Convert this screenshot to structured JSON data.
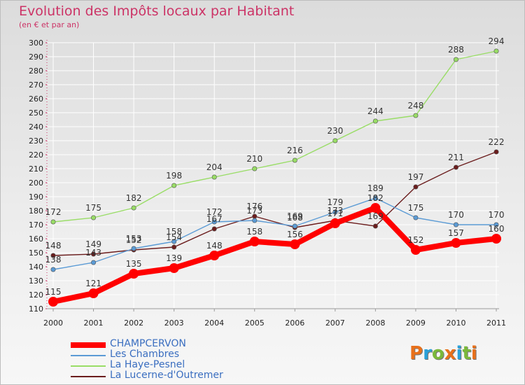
{
  "title": "Evolution des Impôts locaux par Habitant",
  "subtitle": "(en € et par an)",
  "logo": {
    "text": "Proxiti",
    "colors": [
      "#e8701a",
      "#2aa0d8",
      "#7ab83a",
      "#e8701a",
      "#2aa0d8",
      "#7ab83a",
      "#e8701a"
    ]
  },
  "chart_data": {
    "type": "line",
    "title": "Evolution des Impôts locaux par Habitant",
    "subtitle": "(en € et par an)",
    "categories": [
      "2000",
      "2001",
      "2002",
      "2003",
      "2004",
      "2005",
      "2006",
      "2007",
      "2008",
      "2009",
      "2010",
      "2011"
    ],
    "ylim": [
      110,
      300
    ],
    "yticks": [
      110,
      120,
      130,
      140,
      150,
      160,
      170,
      180,
      190,
      200,
      210,
      220,
      230,
      240,
      250,
      260,
      270,
      280,
      290,
      300
    ],
    "grid": true,
    "legend_position": "bottom-left",
    "series": [
      {
        "name": "CHAMPCERVON",
        "color": "#ff0000",
        "values": [
          115,
          121,
          135,
          139,
          148,
          158,
          156,
          171,
          182,
          152,
          157,
          160
        ],
        "labels": [
          "115",
          "121",
          "135",
          "139",
          "148",
          "158",
          "156",
          "171",
          "182",
          "152",
          "157",
          "160"
        ]
      },
      {
        "name": "Les Chambres",
        "color": "#5b9bd5",
        "values": [
          138,
          143,
          153,
          158,
          172,
          173,
          169,
          179,
          189,
          175,
          170,
          170
        ],
        "labels": [
          "138",
          "143",
          "153",
          "158",
          "172",
          "173",
          "169",
          "179",
          "189",
          "175",
          "170",
          "170"
        ]
      },
      {
        "name": "La Haye-Pesnel",
        "color": "#99dd66",
        "values": [
          172,
          175,
          182,
          198,
          204,
          210,
          216,
          230,
          244,
          248,
          288,
          294
        ],
        "labels": [
          "172",
          "175",
          "182",
          "198",
          "204",
          "210",
          "216",
          "230",
          "244",
          "248",
          "288",
          "294"
        ]
      },
      {
        "name": "La Lucerne-d'Outremer",
        "color": "#6b1d1d",
        "values": [
          148,
          149,
          152,
          154,
          167,
          176,
          168,
          173,
          169,
          197,
          211,
          222
        ],
        "labels": [
          "148",
          "149",
          "152",
          "154",
          "167",
          "176",
          "168",
          "173",
          "169",
          "197",
          "211",
          "222"
        ]
      }
    ]
  }
}
